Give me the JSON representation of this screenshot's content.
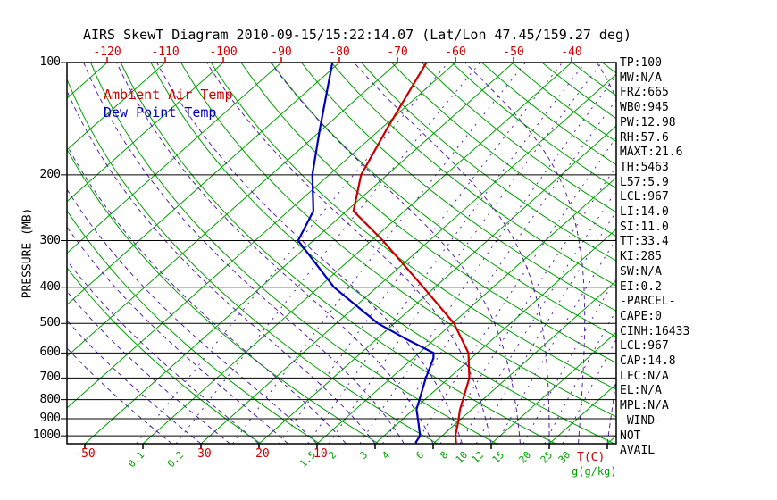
{
  "title": "AIRS SkewT Diagram 2010-09-15/15:22:14.07 (Lat/Lon 47.45/159.27 deg)",
  "legend": {
    "ambient_air_temp": "Ambient Air Temp",
    "dew_point_temp": "Dew Point Temp"
  },
  "axes": {
    "pressure_axis_title": "PRESSURE (MB)",
    "pressure_ticks": [
      100,
      200,
      300,
      400,
      500,
      600,
      700,
      800,
      900,
      1000
    ],
    "top_temp_ticks": [
      -120,
      -110,
      -100,
      -90,
      -80,
      -70,
      -60,
      -50,
      -40
    ],
    "bottom_temp_ticks": [
      -50,
      -30,
      -20,
      -10
    ],
    "temp_unit_label": "T(C)",
    "mixing_ratio_labels": [
      0.1,
      0.2,
      1.5,
      2,
      3,
      4,
      6,
      8,
      10,
      12,
      15,
      20,
      25,
      30
    ],
    "mixing_unit_label": "g(g/kg)"
  },
  "stats_panel": [
    "TP:100",
    "MW:N/A",
    "FRZ:665",
    "WB0:945",
    "PW:12.98",
    "RH:57.6",
    "MAXT:21.6",
    "TH:5463",
    "L57:5.9",
    "LCL:967",
    "LI:14.0",
    "SI:11.0",
    "TT:33.4",
    "KI:285",
    "SW:N/A",
    "EI:0.2",
    "-PARCEL-",
    "CAPE:0",
    "CINH:16433",
    "LCL:967",
    "CAP:14.8",
    "LFC:N/A",
    "EL:N/A",
    "MPL:N/A",
    "-WIND-",
    "NOT",
    "AVAIL"
  ],
  "colors": {
    "temperature": "#cc0000",
    "dewpoint": "#0000bb",
    "isolines_green": "#00a000",
    "isolines_violet": "#5522aa",
    "axis_black": "#000000"
  },
  "chart_data": {
    "type": "line",
    "subtype": "skew-t-log-p",
    "title": "AIRS SkewT Diagram 2010-09-15/15:22:14.07 (Lat/Lon 47.45/159.27 deg)",
    "xlabel": "T(C)",
    "ylabel": "PRESSURE (MB)",
    "pressure_range_mb": [
      100,
      1050
    ],
    "top_axis_temp_range_c": [
      -120,
      -40
    ],
    "isotherm_step_c": 10,
    "dry_adiabat_theta_k": [
      250,
      460
    ],
    "dry_adiabat_step_k": 10,
    "moist_adiabat_start_c": [
      -35,
      40
    ],
    "moist_adiabat_step_c": 5,
    "mixing_ratio_lines_g_kg": [
      0.1,
      0.2,
      0.5,
      1,
      1.5,
      2,
      3,
      4,
      6,
      8,
      10,
      12,
      15,
      20,
      25,
      30
    ],
    "grid": "skew-t background: green solid isotherms and dry adiabats, violet dashed moist adiabats and mixing-ratio lines, black horizontal isobars",
    "series": [
      {
        "name": "Ambient Air Temp",
        "color": "#cc0000",
        "points": [
          {
            "p": 1045,
            "t": 13.8
          },
          {
            "p": 1000,
            "t": 12.3
          },
          {
            "p": 925,
            "t": 10.3
          },
          {
            "p": 850,
            "t": 8.0
          },
          {
            "p": 700,
            "t": 3.5
          },
          {
            "p": 600,
            "t": -1.5
          },
          {
            "p": 500,
            "t": -9.7
          },
          {
            "p": 400,
            "t": -22.0
          },
          {
            "p": 300,
            "t": -38.0
          },
          {
            "p": 250,
            "t": -48.8
          },
          {
            "p": 200,
            "t": -54.5
          },
          {
            "p": 150,
            "t": -59.0
          },
          {
            "p": 100,
            "t": -65.0
          }
        ]
      },
      {
        "name": "Dew Point Temp",
        "color": "#0000bb",
        "points": [
          {
            "p": 1045,
            "t": 6.8
          },
          {
            "p": 1000,
            "t": 6.2
          },
          {
            "p": 925,
            "t": 3.5
          },
          {
            "p": 850,
            "t": 0.5
          },
          {
            "p": 700,
            "t": -4.0
          },
          {
            "p": 620,
            "t": -6.5
          },
          {
            "p": 600,
            "t": -7.5
          },
          {
            "p": 550,
            "t": -15.0
          },
          {
            "p": 500,
            "t": -22.8
          },
          {
            "p": 400,
            "t": -37.4
          },
          {
            "p": 300,
            "t": -52.6
          },
          {
            "p": 250,
            "t": -55.7
          },
          {
            "p": 200,
            "t": -62.9
          },
          {
            "p": 150,
            "t": -70.6
          },
          {
            "p": 100,
            "t": -81.2
          }
        ]
      }
    ]
  }
}
